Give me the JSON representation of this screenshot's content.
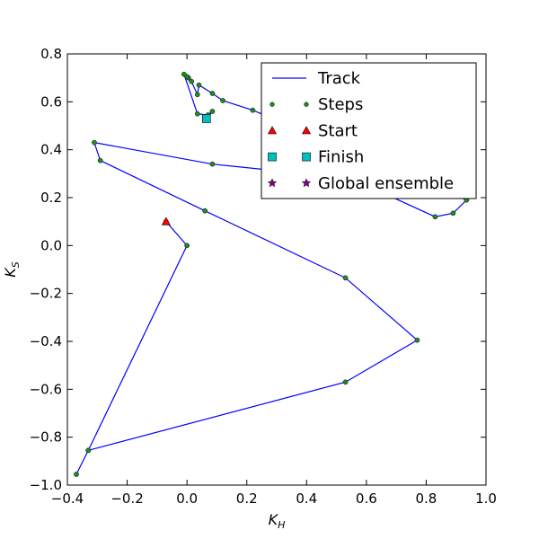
{
  "chart_data": {
    "type": "line",
    "xlabel": "K_H",
    "ylabel": "K_S",
    "xlim": [
      -0.4,
      1.0
    ],
    "ylim": [
      -1.0,
      0.8
    ],
    "xticks": [
      -0.4,
      -0.2,
      0.0,
      0.2,
      0.4,
      0.6,
      0.8,
      1.0
    ],
    "yticks": [
      -1.0,
      -0.8,
      -0.6,
      -0.4,
      -0.2,
      0.0,
      0.2,
      0.4,
      0.6,
      0.8
    ],
    "grid": false,
    "legend_position": "top-right",
    "legend": [
      {
        "label": "Track",
        "kind": "line"
      },
      {
        "label": "Steps",
        "kind": "steps"
      },
      {
        "label": "Start",
        "kind": "start"
      },
      {
        "label": "Finish",
        "kind": "finish"
      },
      {
        "label": "Global ensemble",
        "kind": "global"
      }
    ],
    "series": [
      {
        "name": "Track",
        "color": "#0000ff",
        "x": [
          -0.07,
          0.0,
          -0.33,
          -0.37,
          -0.33,
          0.53,
          0.77,
          0.53,
          0.06,
          -0.29,
          -0.31,
          0.085,
          0.55,
          0.83,
          0.89,
          0.935,
          0.22,
          0.12,
          0.085,
          0.04,
          0.035,
          0.015,
          0.005,
          0.0,
          -0.01,
          0.035,
          0.07,
          0.085,
          0.065
        ],
        "y": [
          0.1,
          0.0,
          -0.855,
          -0.955,
          -0.855,
          -0.57,
          -0.395,
          -0.135,
          0.145,
          0.355,
          0.43,
          0.34,
          0.28,
          0.12,
          0.135,
          0.19,
          0.565,
          0.605,
          0.635,
          0.67,
          0.63,
          0.685,
          0.7,
          0.705,
          0.715,
          0.55,
          0.545,
          0.56,
          0.53
        ]
      }
    ],
    "markers": {
      "steps_color": "#228b22",
      "start": {
        "x": -0.07,
        "y": 0.1,
        "color": "#ff0000"
      },
      "finish": {
        "x": 0.065,
        "y": 0.53,
        "color": "#00bfbf"
      },
      "global_color": "#800080"
    }
  }
}
